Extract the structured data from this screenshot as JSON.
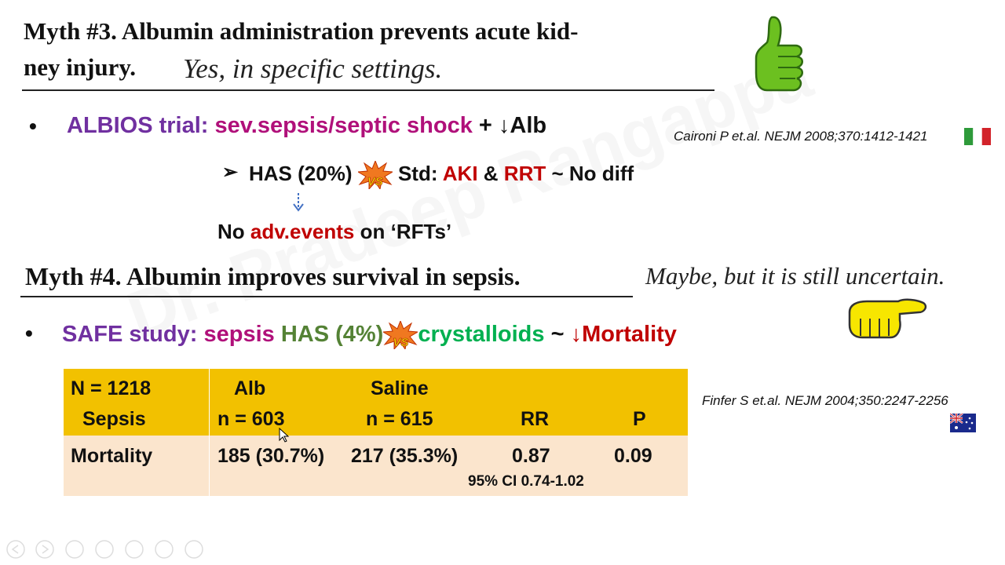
{
  "myth3": {
    "title_line1": "Myth #3. Albumin administration prevents acute kid-",
    "title_line2": "ney injury.",
    "verdict": "Yes, in specific settings."
  },
  "albios": {
    "label": "ALBIOS trial:",
    "population": "sev.sepsis/septic shock",
    "extra": "+ ↓Alb",
    "reference": "Caironi P et.al. NEJM 2008;370:1412-1421",
    "comparison": {
      "arm": "HAS (20%)",
      "vs": "VS",
      "control": "Std:",
      "outcome1": "AKI",
      "joiner": "&",
      "outcome2": "RRT",
      "result": "~ No diff"
    },
    "safety": {
      "prefix": "No",
      "highlight": "adv.events",
      "suffix": "on ‘RFTs’"
    }
  },
  "myth4": {
    "title": "Myth #4. Albumin improves survival in sepsis.",
    "verdict": "Maybe, but it is still uncertain."
  },
  "safe": {
    "label": "SAFE study:",
    "population": "sepsis",
    "arm": "HAS (4%)",
    "vs": "VS",
    "control": "crystalloids",
    "joiner": "~",
    "outcome": "↓Mortality",
    "reference": "Finfer S et.al. NEJM 2004;350:2247-2256"
  },
  "table": {
    "header": [
      [
        "N = 1218",
        "Sepsis"
      ],
      [
        "Alb",
        "n = 603"
      ],
      [
        "Saline",
        "n = 615"
      ],
      [
        "RR"
      ],
      [
        "P"
      ]
    ],
    "rows": [
      [
        "Mortality",
        "185 (30.7%)",
        "217 (35.3%)",
        "0.87",
        "0.09"
      ]
    ],
    "note": "95% CI 0.74-1.02"
  },
  "watermark": "Dr. Pradeep Rangappa"
}
